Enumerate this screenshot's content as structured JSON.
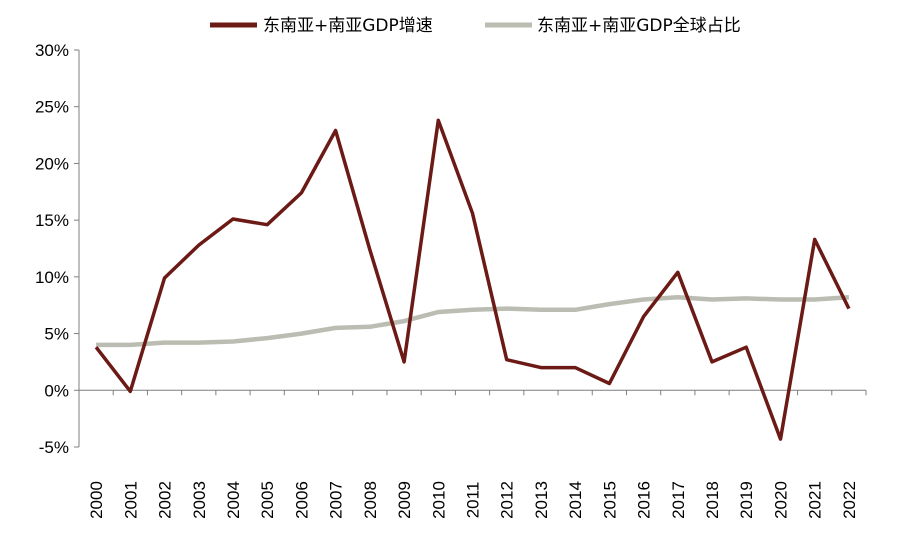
{
  "chart_data": {
    "type": "line",
    "title": "",
    "xlabel": "",
    "ylabel": "",
    "x": [
      "2000",
      "2001",
      "2002",
      "2003",
      "2004",
      "2005",
      "2006",
      "2007",
      "2008",
      "2009",
      "2010",
      "2011",
      "2012",
      "2013",
      "2014",
      "2015",
      "2016",
      "2017",
      "2018",
      "2019",
      "2020",
      "2021",
      "2022"
    ],
    "ylim": [
      -5,
      30
    ],
    "yticks": [
      -5,
      0,
      5,
      10,
      15,
      20,
      25,
      30
    ],
    "ytick_labels": [
      "-5%",
      "0%",
      "5%",
      "10%",
      "15%",
      "20%",
      "25%",
      "30%"
    ],
    "grid": false,
    "legend_position": "top-center",
    "series": [
      {
        "name": "东南亚+南亚GDP增速",
        "color": "#6B1A16",
        "values": [
          3.8,
          -0.1,
          9.9,
          12.8,
          15.1,
          14.6,
          17.4,
          22.9,
          12.4,
          2.5,
          23.8,
          15.6,
          2.7,
          2.0,
          2.0,
          0.6,
          6.5,
          10.4,
          2.5,
          3.8,
          -4.3,
          13.3,
          7.2
        ]
      },
      {
        "name": "东南亚+南亚GDP全球占比",
        "color": "#BCBDB2",
        "values": [
          4.0,
          4.0,
          4.2,
          4.2,
          4.3,
          4.6,
          5.0,
          5.5,
          5.6,
          6.1,
          6.9,
          7.1,
          7.2,
          7.1,
          7.1,
          7.6,
          8.0,
          8.2,
          8.0,
          8.1,
          8.0,
          8.0,
          8.2
        ]
      }
    ]
  }
}
